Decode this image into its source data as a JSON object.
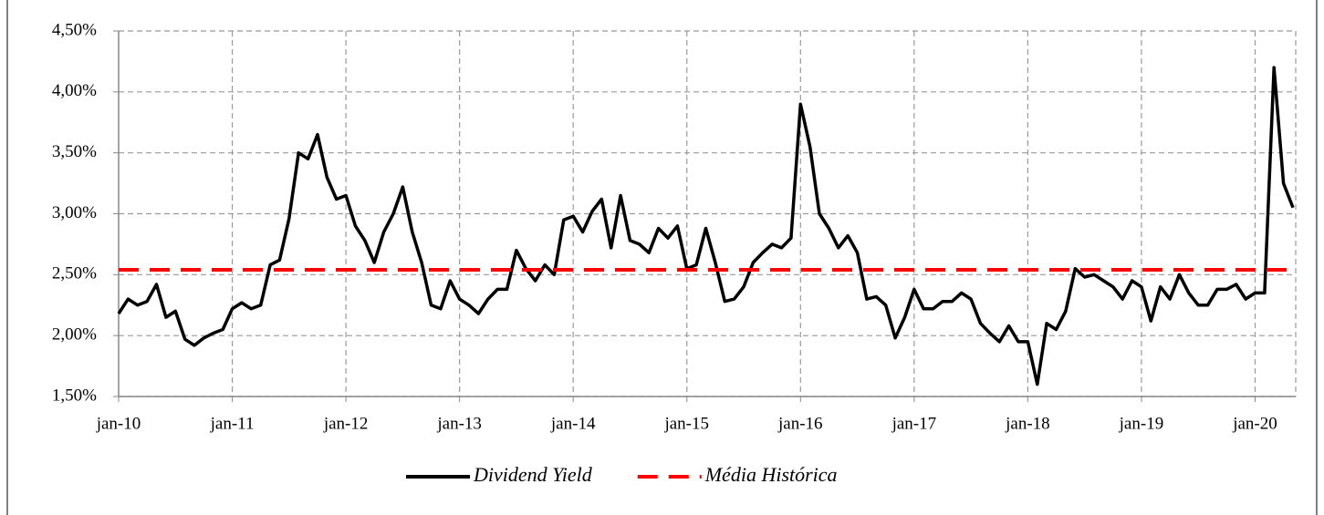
{
  "chart_data": {
    "type": "line",
    "categories": [
      "jan-10",
      null,
      null,
      null,
      null,
      null,
      null,
      null,
      null,
      null,
      null,
      null,
      "jan-11",
      null,
      null,
      null,
      null,
      null,
      null,
      null,
      null,
      null,
      null,
      null,
      "jan-12",
      null,
      null,
      null,
      null,
      null,
      null,
      null,
      null,
      null,
      null,
      null,
      "jan-13",
      null,
      null,
      null,
      null,
      null,
      null,
      null,
      null,
      null,
      null,
      null,
      "jan-14",
      null,
      null,
      null,
      null,
      null,
      null,
      null,
      null,
      null,
      null,
      null,
      "jan-15",
      null,
      null,
      null,
      null,
      null,
      null,
      null,
      null,
      null,
      null,
      null,
      "jan-16",
      null,
      null,
      null,
      null,
      null,
      null,
      null,
      null,
      null,
      null,
      null,
      "jan-17",
      null,
      null,
      null,
      null,
      null,
      null,
      null,
      null,
      null,
      null,
      null,
      "jan-18",
      null,
      null,
      null,
      null,
      null,
      null,
      null,
      null,
      null,
      null,
      null,
      "jan-19",
      null,
      null,
      null,
      null,
      null,
      null,
      null,
      null,
      null,
      null,
      null,
      "jan-20",
      null,
      null,
      null,
      null
    ],
    "series": [
      {
        "name": "Dividend Yield",
        "color": "#000000",
        "values": [
          2.18,
          2.3,
          2.25,
          2.28,
          2.42,
          2.15,
          2.2,
          1.97,
          1.92,
          1.98,
          2.02,
          2.05,
          2.22,
          2.27,
          2.22,
          2.25,
          2.58,
          2.62,
          2.96,
          3.5,
          3.45,
          3.65,
          3.3,
          3.12,
          3.15,
          2.9,
          2.78,
          2.6,
          2.85,
          3.0,
          3.22,
          2.85,
          2.6,
          2.25,
          2.22,
          2.45,
          2.3,
          2.25,
          2.18,
          2.3,
          2.38,
          2.38,
          2.7,
          2.55,
          2.45,
          2.58,
          2.5,
          2.95,
          2.98,
          2.85,
          3.02,
          3.12,
          2.72,
          3.15,
          2.78,
          2.75,
          2.68,
          2.88,
          2.8,
          2.9,
          2.55,
          2.58,
          2.88,
          2.6,
          2.28,
          2.3,
          2.4,
          2.6,
          2.68,
          2.75,
          2.72,
          2.8,
          3.9,
          3.55,
          3.0,
          2.88,
          2.72,
          2.82,
          2.68,
          2.3,
          2.32,
          2.25,
          1.98,
          2.15,
          2.38,
          2.22,
          2.22,
          2.28,
          2.28,
          2.35,
          2.3,
          2.1,
          2.02,
          1.95,
          2.08,
          1.95,
          1.95,
          1.6,
          2.1,
          2.05,
          2.2,
          2.55,
          2.48,
          2.5,
          2.45,
          2.4,
          2.3,
          2.45,
          2.4,
          2.12,
          2.4,
          2.3,
          2.5,
          2.35,
          2.25,
          2.25,
          2.38,
          2.38,
          2.42,
          2.3,
          2.35,
          2.35,
          4.2,
          3.25,
          3.05
        ]
      },
      {
        "name": "Média Histórica",
        "color": "#ff0000",
        "dashed": true,
        "value": 2.54
      }
    ],
    "ylim": [
      1.5,
      4.5
    ],
    "yticks": [
      {
        "value": 1.5,
        "label": "1,50%"
      },
      {
        "value": 2.0,
        "label": "2,00%"
      },
      {
        "value": 2.5,
        "label": "2,50%"
      },
      {
        "value": 3.0,
        "label": "3,00%"
      },
      {
        "value": 3.5,
        "label": "3,50%"
      },
      {
        "value": 4.0,
        "label": "4,00%"
      },
      {
        "value": 4.5,
        "label": "4,50%"
      }
    ],
    "grid": true,
    "legend": "bottom"
  }
}
